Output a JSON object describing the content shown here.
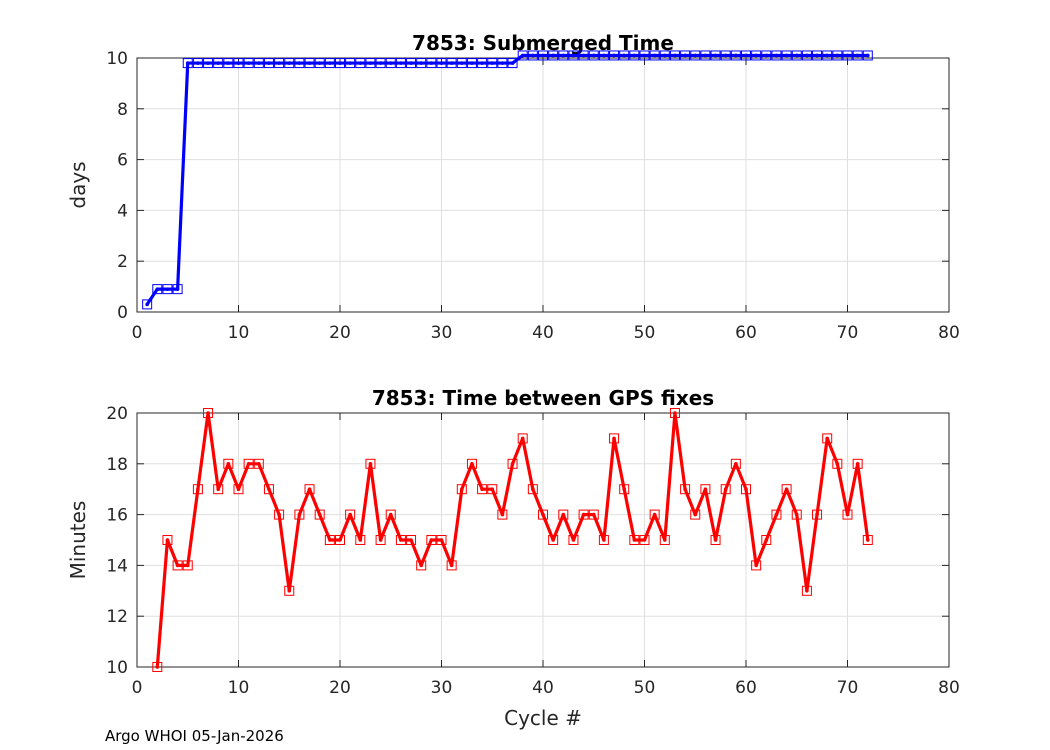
{
  "footer_text": "Argo WHOI 05-Jan-2026",
  "chart_data": [
    {
      "type": "line",
      "title": "7853: Submerged Time",
      "xlabel": "",
      "ylabel": "days",
      "xlim": [
        0,
        80
      ],
      "ylim": [
        0,
        10
      ],
      "xticks": [
        "0",
        "10",
        "20",
        "30",
        "40",
        "50",
        "60",
        "70",
        "80"
      ],
      "yticks": [
        "0",
        "2",
        "4",
        "6",
        "8",
        "10"
      ],
      "grid": true,
      "line_color": "#0000ff",
      "marker": "square",
      "series": [
        {
          "x": [
            1,
            2,
            3,
            4,
            5,
            6,
            7,
            8,
            9,
            10,
            11,
            12,
            13,
            14,
            15,
            16,
            17,
            18,
            19,
            20,
            21,
            22,
            23,
            24,
            25,
            26,
            27,
            28,
            29,
            30,
            31,
            32,
            33,
            34,
            35,
            36,
            37,
            38,
            39,
            40,
            41,
            42,
            43,
            44,
            45,
            46,
            47,
            48,
            49,
            50,
            51,
            52,
            53,
            54,
            55,
            56,
            57,
            58,
            59,
            60,
            61,
            62,
            63,
            64,
            65,
            66,
            67,
            68,
            69,
            70,
            71,
            72
          ],
          "values": [
            0.3,
            0.9,
            0.9,
            0.9,
            9.8,
            9.8,
            9.8,
            9.8,
            9.8,
            9.8,
            9.8,
            9.8,
            9.8,
            9.8,
            9.8,
            9.8,
            9.8,
            9.8,
            9.8,
            9.8,
            9.8,
            9.8,
            9.8,
            9.8,
            9.8,
            9.8,
            9.8,
            9.8,
            9.8,
            9.8,
            9.8,
            9.8,
            9.8,
            9.8,
            9.8,
            9.8,
            9.8,
            10.1,
            10.1,
            10.1,
            10.1,
            10.1,
            10.1,
            10.1,
            10.1,
            10.1,
            10.1,
            10.1,
            10.1,
            10.1,
            10.1,
            10.1,
            10.1,
            10.1,
            10.1,
            10.1,
            10.1,
            10.1,
            10.1,
            10.1,
            10.1,
            10.1,
            10.1,
            10.1,
            10.1,
            10.1,
            10.1,
            10.1,
            10.1,
            10.1,
            10.1,
            10.1
          ]
        }
      ]
    },
    {
      "type": "line",
      "title": "7853: Time between GPS fixes",
      "xlabel": "Cycle #",
      "ylabel": "Minutes",
      "xlim": [
        0,
        80
      ],
      "ylim": [
        10,
        20
      ],
      "xticks": [
        "0",
        "10",
        "20",
        "30",
        "40",
        "50",
        "60",
        "70",
        "80"
      ],
      "yticks": [
        "10",
        "12",
        "14",
        "16",
        "18",
        "20"
      ],
      "grid": true,
      "line_color": "#ff0000",
      "marker": "square",
      "series": [
        {
          "x": [
            2,
            3,
            4,
            5,
            6,
            7,
            8,
            9,
            10,
            11,
            12,
            13,
            14,
            15,
            16,
            17,
            18,
            19,
            20,
            21,
            22,
            23,
            24,
            25,
            26,
            27,
            28,
            29,
            30,
            31,
            32,
            33,
            34,
            35,
            36,
            37,
            38,
            39,
            40,
            41,
            42,
            43,
            44,
            45,
            46,
            47,
            48,
            49,
            50,
            51,
            52,
            53,
            54,
            55,
            56,
            57,
            58,
            59,
            60,
            61,
            62,
            63,
            64,
            65,
            66,
            67,
            68,
            69,
            70,
            71,
            72
          ],
          "values": [
            10,
            15,
            14,
            14,
            17,
            20,
            17,
            18,
            17,
            18,
            18,
            17,
            16,
            13,
            16,
            17,
            16,
            15,
            15,
            16,
            15,
            18,
            15,
            16,
            15,
            15,
            14,
            15,
            15,
            14,
            17,
            18,
            17,
            17,
            16,
            18,
            19,
            17,
            16,
            15,
            16,
            15,
            16,
            16,
            15,
            19,
            17,
            15,
            15,
            16,
            15,
            20,
            17,
            16,
            17,
            15,
            17,
            18,
            17,
            14,
            15,
            16,
            17,
            16,
            13,
            16,
            19,
            18,
            16,
            18,
            15
          ]
        }
      ]
    }
  ]
}
